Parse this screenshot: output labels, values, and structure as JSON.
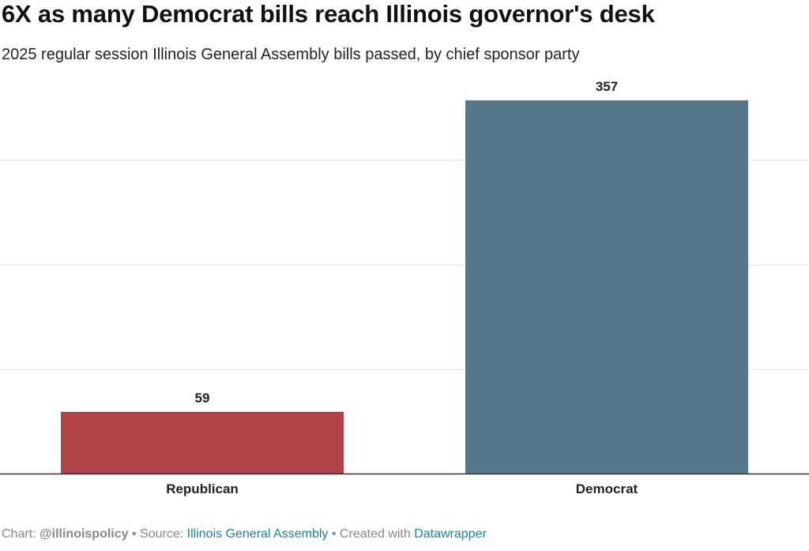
{
  "chart_data": {
    "type": "bar",
    "title": "6X as many Democrat bills reach Illinois governor's desk",
    "subtitle": "2025 regular session Illinois General Assembly bills passed, by chief sponsor party",
    "categories": [
      "Republican",
      "Democrat"
    ],
    "values": [
      59,
      357
    ],
    "colors": [
      "#b0444a",
      "#57788b"
    ],
    "ylim": [
      0,
      400
    ],
    "gridlines": [
      100,
      200,
      300
    ],
    "xlabel": "",
    "ylabel": "",
    "grid": true
  },
  "footer": {
    "chart_prefix": "Chart:",
    "chart_by": "@illinoispolicy",
    "sep1": "•",
    "source_prefix": "Source:",
    "source_name": "Illinois General Assembly",
    "sep2": "•",
    "created_prefix": "Created with",
    "tool_name": "Datawrapper"
  }
}
